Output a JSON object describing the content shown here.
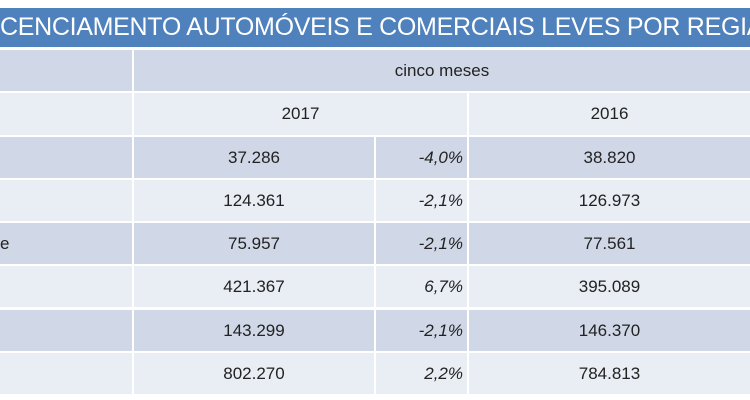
{
  "title": "CENCIAMENTO AUTOMÓVEIS E COMERCIAIS LEVES POR REGIÃ",
  "header": {
    "period": "cinco meses",
    "year_2017": "2017",
    "year_2016": "2016"
  },
  "rows": [
    {
      "region": "",
      "v2017": "37.286",
      "change": "-4,0%",
      "v2016": "38.820"
    },
    {
      "region": "",
      "v2017": "124.361",
      "change": "-2,1%",
      "v2016": "126.973"
    },
    {
      "region": "e",
      "v2017": "75.957",
      "change": "-2,1%",
      "v2016": "77.561"
    },
    {
      "region": "",
      "v2017": "421.367",
      "change": "6,7%",
      "v2016": "395.089"
    },
    {
      "region": "",
      "v2017": "143.299",
      "change": "-2,1%",
      "v2016": "146.370"
    },
    {
      "region": "",
      "v2017": "802.270",
      "change": "2,2%",
      "v2016": "784.813"
    }
  ],
  "colors": {
    "title_bg": "#4f81bd",
    "row_dark": "#d0d8e8",
    "row_light": "#e9edf4"
  }
}
